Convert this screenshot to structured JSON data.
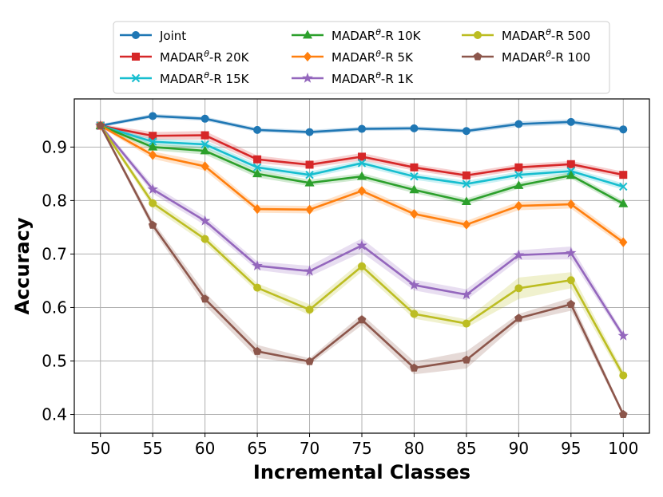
{
  "chart_data": {
    "type": "line",
    "title": "",
    "xlabel": "Incremental Classes",
    "ylabel": "Accuracy",
    "x": [
      50,
      55,
      60,
      65,
      70,
      75,
      80,
      85,
      90,
      95,
      100
    ],
    "xticks": [
      "50",
      "55",
      "60",
      "65",
      "70",
      "75",
      "80",
      "85",
      "90",
      "95",
      "100"
    ],
    "yticks": [
      0.4,
      0.5,
      0.6,
      0.7,
      0.8,
      0.9
    ],
    "ytick_labels": [
      "0.4",
      "0.5",
      "0.6",
      "0.7",
      "0.8",
      "0.9"
    ],
    "xlim": [
      47.5,
      102.5
    ],
    "ylim": [
      0.365,
      0.99
    ],
    "grid": true,
    "legend_position": "top",
    "series": [
      {
        "name": "Joint",
        "label_base": "Joint",
        "label_sup": "",
        "label_tail": "",
        "color": "#1f77b4",
        "marker": "circle",
        "values": [
          0.94,
          0.958,
          0.953,
          0.932,
          0.928,
          0.934,
          0.935,
          0.93,
          0.943,
          0.947,
          0.933
        ],
        "band": [
          0.003,
          0.004,
          0.004,
          0.004,
          0.004,
          0.004,
          0.004,
          0.004,
          0.005,
          0.005,
          0.004
        ]
      },
      {
        "name": "MADAR^θ-R 20K",
        "label_base": "MADAR",
        "label_sup": "θ",
        "label_tail": "-R 20K",
        "color": "#d62728",
        "marker": "square",
        "values": [
          0.94,
          0.921,
          0.922,
          0.877,
          0.867,
          0.882,
          0.862,
          0.847,
          0.862,
          0.868,
          0.848
        ],
        "band": [
          0.003,
          0.007,
          0.008,
          0.007,
          0.006,
          0.007,
          0.006,
          0.006,
          0.006,
          0.006,
          0.006
        ]
      },
      {
        "name": "MADAR^θ-R 15K",
        "label_base": "MADAR",
        "label_sup": "θ",
        "label_tail": "-R 15K",
        "color": "#17becf",
        "marker": "x",
        "values": [
          0.94,
          0.91,
          0.905,
          0.862,
          0.848,
          0.87,
          0.845,
          0.831,
          0.848,
          0.855,
          0.826
        ],
        "band": [
          0.003,
          0.006,
          0.007,
          0.006,
          0.006,
          0.006,
          0.006,
          0.006,
          0.006,
          0.006,
          0.006
        ]
      },
      {
        "name": "MADAR^θ-R 10K",
        "label_base": "MADAR",
        "label_sup": "θ",
        "label_tail": "-R 10K",
        "color": "#2ca02c",
        "marker": "triangle",
        "values": [
          0.94,
          0.9,
          0.893,
          0.85,
          0.833,
          0.845,
          0.82,
          0.798,
          0.828,
          0.847,
          0.794
        ],
        "band": [
          0.003,
          0.006,
          0.007,
          0.007,
          0.006,
          0.006,
          0.006,
          0.006,
          0.006,
          0.006,
          0.006
        ]
      },
      {
        "name": "MADAR^θ-R 5K",
        "label_base": "MADAR",
        "label_sup": "θ",
        "label_tail": "-R 5K",
        "color": "#ff7f0e",
        "marker": "diamond",
        "values": [
          0.94,
          0.885,
          0.864,
          0.784,
          0.783,
          0.818,
          0.775,
          0.755,
          0.79,
          0.793,
          0.722
        ],
        "band": [
          0.003,
          0.007,
          0.008,
          0.007,
          0.007,
          0.008,
          0.007,
          0.007,
          0.008,
          0.008,
          0.007
        ]
      },
      {
        "name": "MADAR^θ-R 1K",
        "label_base": "MADAR",
        "label_sup": "θ",
        "label_tail": "-R 1K",
        "color": "#9467bd",
        "marker": "star",
        "values": [
          0.94,
          0.821,
          0.762,
          0.678,
          0.668,
          0.716,
          0.642,
          0.624,
          0.698,
          0.702,
          0.547
        ],
        "band": [
          0.003,
          0.008,
          0.008,
          0.008,
          0.01,
          0.013,
          0.01,
          0.01,
          0.009,
          0.012,
          0.006
        ]
      },
      {
        "name": "MADAR^θ-R 500",
        "label_base": "MADAR",
        "label_sup": "θ",
        "label_tail": "-R 500",
        "color": "#bcbd22",
        "marker": "circle",
        "values": [
          0.94,
          0.795,
          0.728,
          0.637,
          0.596,
          0.677,
          0.588,
          0.57,
          0.636,
          0.651,
          0.473
        ],
        "band": [
          0.003,
          0.008,
          0.008,
          0.008,
          0.01,
          0.01,
          0.009,
          0.008,
          0.02,
          0.015,
          0.008
        ]
      },
      {
        "name": "MADAR^θ-R 100",
        "label_base": "MADAR",
        "label_sup": "θ",
        "label_tail": "-R 100",
        "color": "#8c564b",
        "marker": "pentagon",
        "values": [
          0.94,
          0.754,
          0.616,
          0.518,
          0.499,
          0.577,
          0.487,
          0.502,
          0.58,
          0.606,
          0.4
        ],
        "band": [
          0.003,
          0.008,
          0.012,
          0.012,
          0.006,
          0.01,
          0.012,
          0.016,
          0.008,
          0.012,
          0.004
        ]
      }
    ]
  }
}
